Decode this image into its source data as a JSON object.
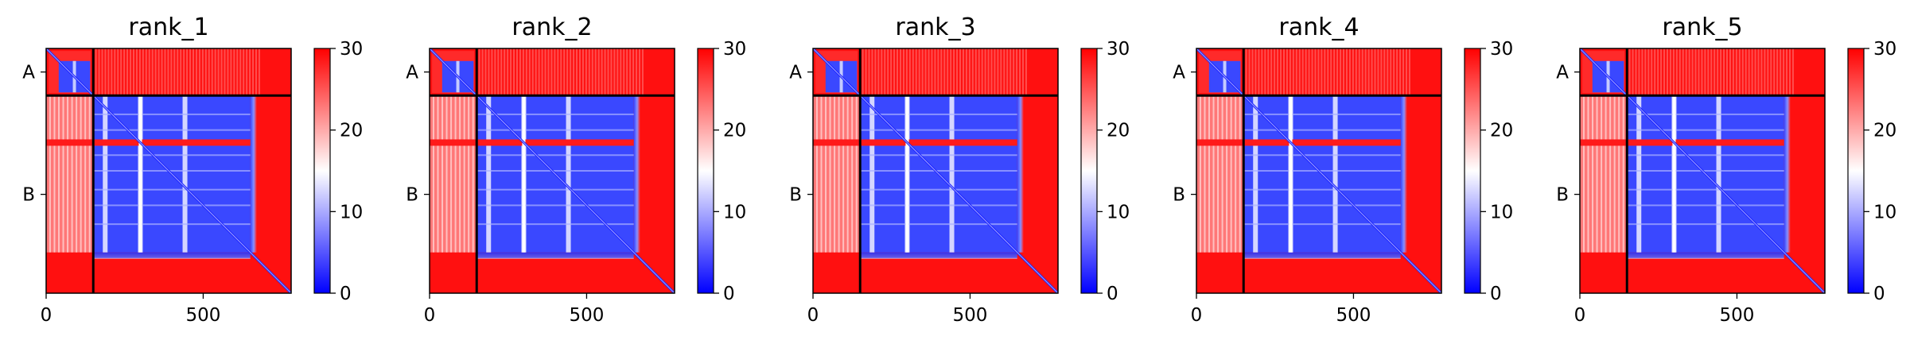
{
  "figure": {
    "colormap": "bwr",
    "colors": {
      "low": "#0000ff",
      "mid": "#ffffff",
      "high": "#ff0000",
      "frame": "#000000",
      "background": "#ffffff"
    },
    "chain_labels": [
      "A",
      "B"
    ],
    "x_ticks": [
      "0",
      "500"
    ],
    "colorbar_ticks": [
      "0",
      "10",
      "20",
      "30"
    ],
    "colorbar_range": [
      0,
      30
    ]
  },
  "chart_data": [
    {
      "type": "heatmap",
      "title": "rank_1",
      "x": [
        0,
        500
      ],
      "xlim": [
        0,
        780
      ],
      "chain_boundary": 150,
      "chain_labels": [
        "A",
        "B"
      ],
      "colorbar_range": [
        0,
        30
      ]
    },
    {
      "type": "heatmap",
      "title": "rank_2",
      "x": [
        0,
        500
      ],
      "xlim": [
        0,
        780
      ],
      "chain_boundary": 150,
      "chain_labels": [
        "A",
        "B"
      ],
      "colorbar_range": [
        0,
        30
      ]
    },
    {
      "type": "heatmap",
      "title": "rank_3",
      "x": [
        0,
        500
      ],
      "xlim": [
        0,
        780
      ],
      "chain_boundary": 150,
      "chain_labels": [
        "A",
        "B"
      ],
      "colorbar_range": [
        0,
        30
      ]
    },
    {
      "type": "heatmap",
      "title": "rank_4",
      "x": [
        0,
        500
      ],
      "xlim": [
        0,
        780
      ],
      "chain_boundary": 150,
      "chain_labels": [
        "A",
        "B"
      ],
      "colorbar_range": [
        0,
        30
      ]
    },
    {
      "type": "heatmap",
      "title": "rank_5",
      "x": [
        0,
        500
      ],
      "xlim": [
        0,
        780
      ],
      "chain_boundary": 150,
      "chain_labels": [
        "A",
        "B"
      ],
      "colorbar_range": [
        0,
        30
      ]
    }
  ]
}
